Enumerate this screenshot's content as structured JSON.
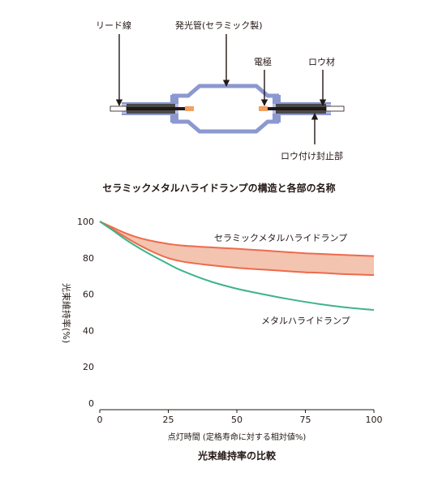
{
  "diagram": {
    "labels": {
      "lead_wire": "リード線",
      "arc_tube": "発光管(セラミック製)",
      "electrode": "電極",
      "brazing_material": "ロウ材",
      "brazed_seal": "ロウ付け封止部"
    },
    "caption": "セラミックメタルハライドランプの構造と各部の名称",
    "colors": {
      "tube": "#8c98d0",
      "electrode": "#f0a060",
      "rod": "#231815"
    }
  },
  "chart_data": {
    "type": "line",
    "title": "光束維持率の比較",
    "xlabel": "点灯時間 (定格寿命に対する相対値%)",
    "ylabel": "光束維持率(%)",
    "xlim": [
      0,
      100
    ],
    "ylim": [
      0,
      100
    ],
    "x_ticks": [
      0,
      25,
      50,
      75,
      100
    ],
    "y_ticks": [
      0,
      20,
      40,
      60,
      80,
      100
    ],
    "grid": false,
    "series": [
      {
        "name": "セラミックメタルハライドランプ",
        "kind": "band",
        "color": "#ee6a4c",
        "fill": "#f3c4b0",
        "upper": {
          "x": [
            0,
            5,
            10,
            15,
            20,
            25,
            30,
            40,
            50,
            60,
            70,
            75,
            80,
            90,
            100
          ],
          "y": [
            100,
            96.5,
            93.2,
            90.7,
            89,
            87.7,
            86.8,
            85.8,
            85,
            84,
            83,
            82.5,
            82.2,
            81.5,
            81
          ]
        },
        "lower": {
          "x": [
            0,
            5,
            10,
            15,
            20,
            25,
            30,
            40,
            50,
            60,
            70,
            75,
            80,
            90,
            100
          ],
          "y": [
            100,
            95.5,
            90.8,
            86.5,
            82.8,
            79.8,
            78,
            76,
            74.5,
            73.5,
            72.5,
            72,
            71.8,
            71,
            70.5
          ]
        }
      },
      {
        "name": "メタルハライドランプ",
        "kind": "line",
        "color": "#3eb489",
        "x": [
          0,
          5,
          10,
          15,
          20,
          25,
          30,
          40,
          50,
          60,
          70,
          80,
          90,
          100
        ],
        "y": [
          100,
          94.8,
          89.5,
          84.8,
          80.6,
          76.6,
          72.9,
          67.2,
          63,
          59.8,
          57,
          54.6,
          52.7,
          51.3
        ]
      }
    ]
  }
}
